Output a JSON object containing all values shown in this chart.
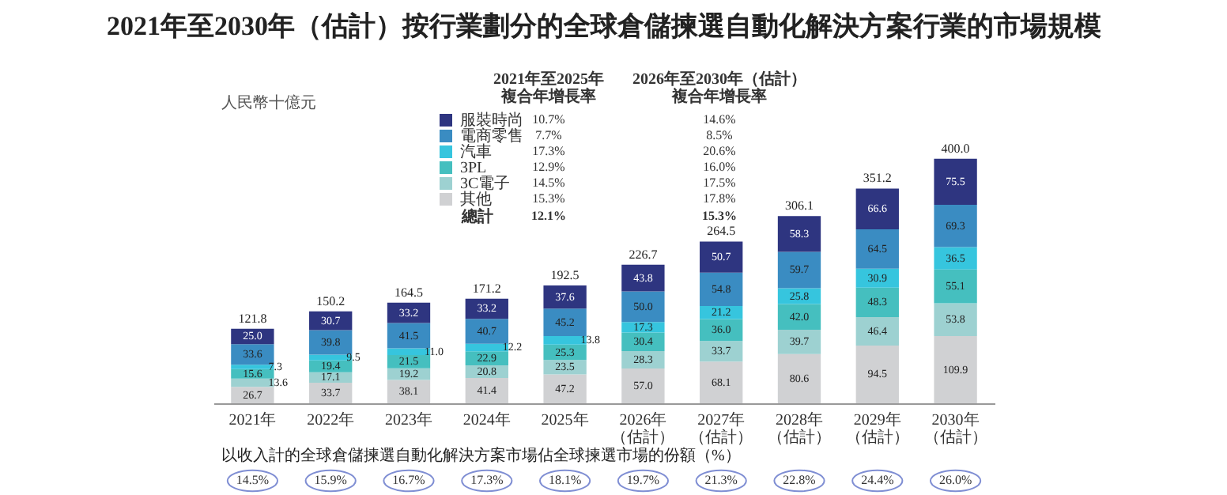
{
  "chart_data": {
    "type": "bar",
    "stacked": true,
    "title": "2021年至2030年（估計）按行業劃分的全球倉儲揀選自動化解決方案行業的市場規模",
    "ylabel": "人民幣十億元",
    "categories": [
      "2021年",
      "2022年",
      "2023年",
      "2024年",
      "2025年",
      "2026年（估計）",
      "2027年（估計）",
      "2028年（估計）",
      "2029年（估計）",
      "2030年（估計）"
    ],
    "series": [
      {
        "name": "其他",
        "color": "#d0d1d3",
        "values": [
          26.7,
          33.7,
          38.1,
          41.4,
          47.2,
          57.0,
          68.1,
          80.6,
          94.5,
          109.9
        ],
        "value_labels": [
          "26.7",
          "33.7",
          "38.1",
          "41.4",
          "47.2",
          "57.0",
          "68.1",
          "80.6",
          "94.5",
          "109.9"
        ]
      },
      {
        "name": "3C電子",
        "color": "#9dd1d1",
        "values": [
          13.6,
          17.1,
          19.2,
          20.8,
          23.5,
          28.3,
          33.7,
          39.7,
          46.4,
          53.8
        ],
        "value_labels": [
          "13.6",
          "17.1",
          "19.2",
          "20.8",
          "23.5",
          "28.3",
          "33.7",
          "39.7",
          "46.4",
          "53.8"
        ]
      },
      {
        "name": "3PL",
        "color": "#45bfbf",
        "values": [
          15.6,
          19.4,
          21.5,
          22.9,
          25.3,
          30.4,
          36.0,
          42.0,
          48.3,
          55.1
        ],
        "value_labels": [
          "15.6",
          "19.4",
          "21.5",
          "22.9",
          "25.3",
          "30.4",
          "36.0",
          "42.0",
          "48.3",
          "55.1"
        ]
      },
      {
        "name": "汽車",
        "color": "#36c5de",
        "values": [
          7.3,
          9.5,
          11.0,
          12.2,
          13.8,
          17.3,
          21.2,
          25.8,
          30.9,
          36.5
        ],
        "value_labels": [
          "7.3",
          "9.5",
          "11.0",
          "12.2",
          "13.8",
          "17.3",
          "21.2",
          "25.8",
          "30.9",
          "36.5"
        ]
      },
      {
        "name": "電商零售",
        "color": "#3a8cc2",
        "values": [
          33.6,
          39.8,
          41.5,
          40.7,
          45.2,
          50.0,
          54.8,
          59.7,
          64.5,
          69.3
        ],
        "value_labels": [
          "33.6",
          "39.8",
          "41.5",
          "40.7",
          "45.2",
          "50.0",
          "54.8",
          "59.7",
          "64.5",
          "69.3"
        ]
      },
      {
        "name": "服裝時尚",
        "color": "#2e3580",
        "values": [
          25.0,
          30.7,
          33.2,
          33.2,
          37.6,
          43.8,
          50.7,
          58.3,
          66.6,
          75.5
        ],
        "value_labels": [
          "25.0",
          "30.7",
          "33.2",
          "33.2",
          "37.6",
          "43.8",
          "50.7",
          "58.3",
          "66.6",
          "75.5"
        ]
      }
    ],
    "totals": [
      "121.8",
      "150.2",
      "164.5",
      "171.2",
      "192.5",
      "226.7",
      "264.5",
      "306.1",
      "351.2",
      "400.0"
    ],
    "legend": "top",
    "tick_labels": "x",
    "annotations": [
      "2021年至2025年複合年增長率",
      "2026年至2030年（估計）複合年增長率",
      "10.7%",
      "7.7%",
      "17.3%",
      "12.9%",
      "14.5%",
      "15.3%",
      "14.6%",
      "8.5%",
      "20.6%",
      "16.0%",
      "17.5%",
      "17.8%",
      "總計",
      "12.1%",
      "15.3%",
      "以收入計的全球倉儲揀選自動化解決方案市場佔全球揀選市場的份額（%）",
      "14.5%",
      "15.9%",
      "16.7%",
      "17.3%",
      "18.1%",
      "19.7%",
      "21.3%",
      "22.8%",
      "24.4%",
      "26.0%"
    ]
  }
}
